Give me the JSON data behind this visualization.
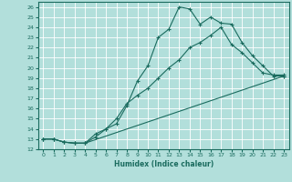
{
  "title": "",
  "xlabel": "Humidex (Indice chaleur)",
  "ylabel": "",
  "bg_color": "#b2dfdb",
  "grid_color": "#d0eeea",
  "line_color": "#1a6b5e",
  "xlim": [
    -0.5,
    23.5
  ],
  "ylim": [
    12,
    26.5
  ],
  "xticks": [
    0,
    1,
    2,
    3,
    4,
    5,
    6,
    7,
    8,
    9,
    10,
    11,
    12,
    13,
    14,
    15,
    16,
    17,
    18,
    19,
    20,
    21,
    22,
    23
  ],
  "yticks": [
    12,
    13,
    14,
    15,
    16,
    17,
    18,
    19,
    20,
    21,
    22,
    23,
    24,
    25,
    26
  ],
  "curve1_x": [
    0,
    1,
    2,
    3,
    4,
    5,
    6,
    7,
    8,
    9,
    10,
    11,
    12,
    13,
    14,
    15,
    16,
    17,
    18,
    19,
    20,
    21,
    22,
    23
  ],
  "curve1_y": [
    13.0,
    13.0,
    12.7,
    12.6,
    12.6,
    13.5,
    14.0,
    14.5,
    16.3,
    18.7,
    20.2,
    23.0,
    23.8,
    26.0,
    25.8,
    24.3,
    25.0,
    24.4,
    24.3,
    22.5,
    21.2,
    20.2,
    19.2,
    19.2
  ],
  "curve2_x": [
    0,
    1,
    2,
    3,
    4,
    5,
    6,
    7,
    8,
    9,
    10,
    11,
    12,
    13,
    14,
    15,
    16,
    17,
    18,
    19,
    20,
    21,
    22,
    23
  ],
  "curve2_y": [
    13.0,
    13.0,
    12.7,
    12.6,
    12.6,
    13.2,
    14.0,
    15.0,
    16.5,
    17.3,
    18.0,
    19.0,
    20.0,
    20.8,
    22.0,
    22.5,
    23.2,
    24.0,
    22.3,
    21.5,
    20.5,
    19.5,
    19.3,
    19.3
  ],
  "curve3_x": [
    0,
    1,
    2,
    3,
    4,
    23
  ],
  "curve3_y": [
    13.0,
    13.0,
    12.7,
    12.6,
    12.6,
    19.2
  ]
}
